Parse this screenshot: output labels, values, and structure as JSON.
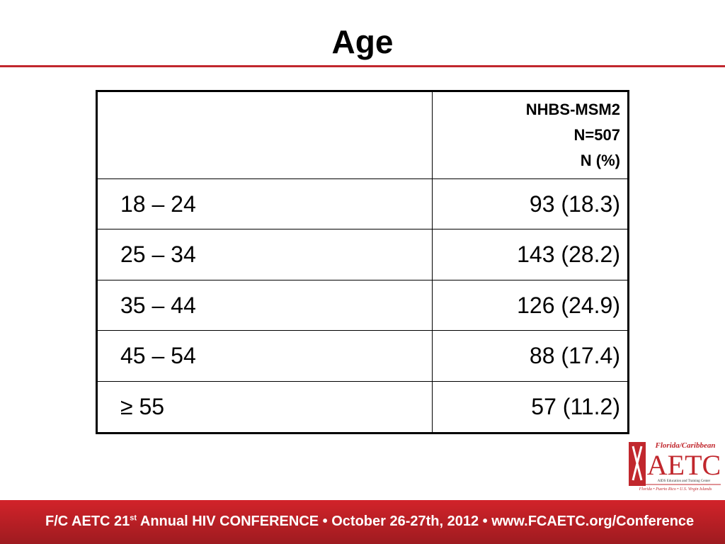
{
  "header": {
    "title": "Age"
  },
  "table": {
    "header": [
      "NHBS-MSM2",
      "N=507",
      "N (%)"
    ],
    "rows": [
      [
        "18 – 24",
        "93 (18.3)"
      ],
      [
        "25 – 34",
        "143 (28.2)"
      ],
      [
        "35 – 44",
        "126 (24.9)"
      ],
      [
        "45 – 54",
        "88 (17.4)"
      ],
      [
        "≥ 55",
        "57 (11.2)"
      ]
    ]
  },
  "logo": {
    "top": "Florida/Caribbean",
    "name": "AETC",
    "subtitle": "AIDS Education and Training Center",
    "regions": "Florida • Puerto Rico • U.S. Virgin Islands"
  },
  "footer": {
    "parts": [
      "F/C AETC 21",
      "st",
      " Annual HIV CONFERENCE • October 26-27th, 2012 • www.FCAETC.org/Conference"
    ]
  }
}
